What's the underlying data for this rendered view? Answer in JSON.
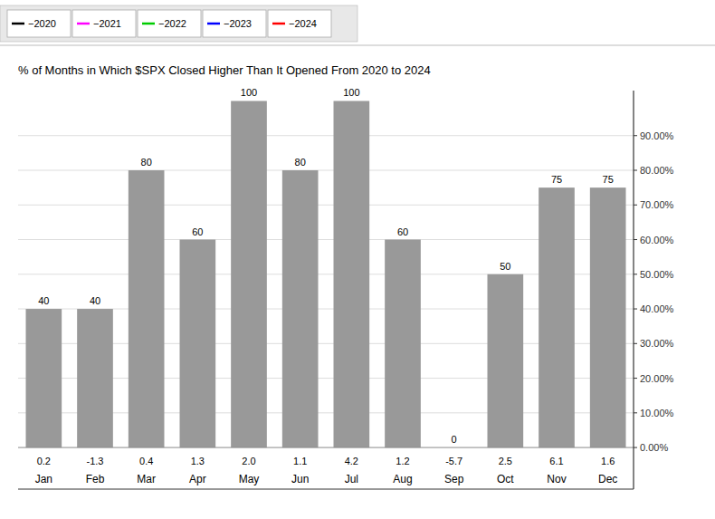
{
  "chart_data": {
    "type": "bar",
    "title": "% of Months in Which $SPX Closed Higher Than It Opened From 2020 to 2024",
    "categories": [
      "Jan",
      "Feb",
      "Mar",
      "Apr",
      "May",
      "Jun",
      "Jul",
      "Aug",
      "Sep",
      "Oct",
      "Nov",
      "Dec"
    ],
    "values": [
      40,
      40,
      80,
      60,
      100,
      80,
      100,
      60,
      0,
      50,
      75,
      75
    ],
    "avg_values": [
      0.2,
      -1.3,
      0.4,
      1.3,
      2.0,
      1.1,
      4.2,
      1.2,
      -5.7,
      2.5,
      6.1,
      1.6
    ],
    "color": "#999999",
    "data_labels": true,
    "ylim": [
      -12,
      103
    ],
    "yticks": [
      {
        "value": 0,
        "label": "0.00%"
      },
      {
        "value": 10,
        "label": "10.00%"
      },
      {
        "value": 20,
        "label": "20.00%"
      },
      {
        "value": 30,
        "label": "30.00%"
      },
      {
        "value": 40,
        "label": "40.00%"
      },
      {
        "value": 50,
        "label": "50.00%"
      },
      {
        "value": 60,
        "label": "60.00%"
      },
      {
        "value": 70,
        "label": "70.00%"
      },
      {
        "value": 80,
        "label": "80.00%"
      },
      {
        "value": 90,
        "label": "90.00%"
      }
    ],
    "grid": true,
    "legend_items": [
      {
        "label": "−2020",
        "color": "#000000"
      },
      {
        "label": "−2021",
        "color": "#ff00ff"
      },
      {
        "label": "−2022",
        "color": "#00cc00"
      },
      {
        "label": "−2023",
        "color": "#0000ff"
      },
      {
        "label": "−2024",
        "color": "#ff0000"
      }
    ]
  }
}
